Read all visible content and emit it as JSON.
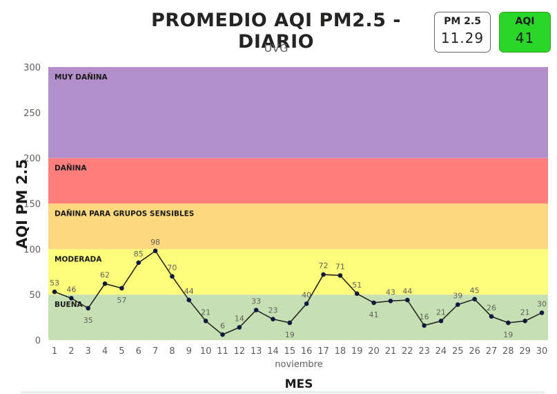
{
  "header": {
    "title": "PROMEDIO AQI PM2.5 - DIARIO",
    "subtitle": "UVG"
  },
  "cards": {
    "pm": {
      "label": "PM 2.5",
      "value": "11.29",
      "border": "#666666"
    },
    "aqi": {
      "label": "AQI",
      "value": "41",
      "color": "#2bd62b"
    }
  },
  "chart_data": {
    "type": "line",
    "ylabel": "AQI PM 2.5",
    "xlabel": "MES",
    "x_group_label": "noviembre",
    "ylim": [
      0,
      300
    ],
    "yticks": [
      0,
      50,
      100,
      150,
      200,
      250,
      300
    ],
    "categories": [
      "1",
      "2",
      "3",
      "4",
      "5",
      "6",
      "7",
      "8",
      "9",
      "10",
      "11",
      "12",
      "13",
      "14",
      "15",
      "16",
      "17",
      "18",
      "19",
      "20",
      "21",
      "22",
      "23",
      "24",
      "25",
      "26",
      "27",
      "28",
      "29",
      "30"
    ],
    "values": [
      53,
      46,
      35,
      62,
      57,
      85,
      98,
      70,
      44,
      21,
      6,
      14,
      33,
      23,
      19,
      40,
      72,
      71,
      51,
      41,
      43,
      44,
      16,
      21,
      39,
      45,
      26,
      19,
      21,
      30
    ],
    "label_position": [
      "above",
      "above",
      "below",
      "above",
      "below",
      "above",
      "above",
      "above",
      "above",
      "above",
      "above",
      "above",
      "above",
      "above",
      "below",
      "above",
      "above",
      "above",
      "above",
      "below",
      "above",
      "above",
      "above",
      "above",
      "above",
      "above",
      "above",
      "below",
      "above",
      "above"
    ],
    "bands": [
      {
        "label": "BUENA",
        "from": 0,
        "to": 50,
        "color": "#c6e0b4"
      },
      {
        "label": "MODERADA",
        "from": 50,
        "to": 100,
        "color": "#fdfd7c"
      },
      {
        "label": "DAÑINA PARA GRUPOS SENSIBLES",
        "from": 100,
        "to": 150,
        "color": "#ffd97f"
      },
      {
        "label": "DAÑINA",
        "from": 150,
        "to": 200,
        "color": "#ff7f7f"
      },
      {
        "label": "MUY DAÑINA",
        "from": 200,
        "to": 300,
        "color": "#b28ecb"
      }
    ],
    "line_color": "#1a1a1a",
    "marker_color": "#101840",
    "grid": false
  }
}
